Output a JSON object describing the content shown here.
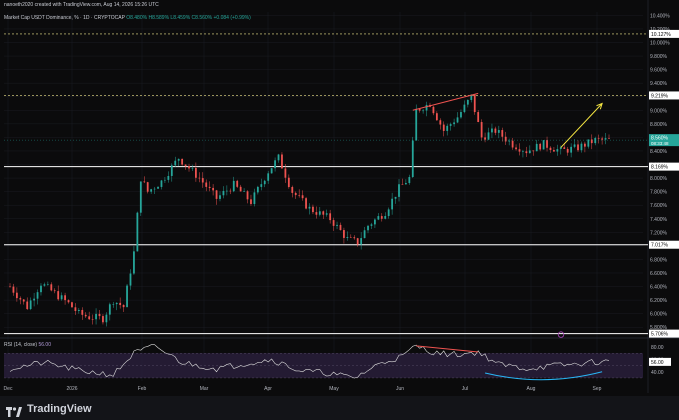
{
  "credit": "nanoeth2020 created with TradingView.com, Aug 14, 2026 15:26 UTC",
  "legend": {
    "symbol": "Market Cap USDT Dominance, %",
    "interval": "1D",
    "exchange": "CRYPTOCAP",
    "ohlc": "O8.480% H8.589% L8.459% C8.560% +0.084 (+0.99%)"
  },
  "brand": "TradingView",
  "chart_data": {
    "type": "candlestick",
    "title": "Market Cap USDT Dominance, %",
    "y_axis_ticks": [
      "10.400%",
      "10.200%",
      "10.000%",
      "9.800%",
      "9.600%",
      "9.400%",
      "9.200%",
      "9.000%",
      "8.800%",
      "8.600%",
      "8.400%",
      "8.200%",
      "8.000%",
      "7.800%",
      "7.600%",
      "7.400%",
      "7.200%",
      "7.000%",
      "6.800%",
      "6.600%",
      "6.400%",
      "6.200%",
      "6.000%",
      "5.800%"
    ],
    "ylim": [
      5.7,
      10.45
    ],
    "x_axis_ticks": [
      "Dec",
      "2026",
      "Feb",
      "Mar",
      "Apr",
      "May",
      "Jun",
      "Jul",
      "Aug",
      "Sep"
    ],
    "current_price": {
      "value": 8.56,
      "label": "8.560%",
      "countdown": "08:33:48"
    },
    "horizontal_levels": [
      {
        "value": 10.127,
        "label": "10.127%",
        "style": "dashed",
        "color": "#f0e68c"
      },
      {
        "value": 9.219,
        "label": "9.219%",
        "style": "dashed",
        "color": "#f0e68c"
      },
      {
        "value": 8.169,
        "label": "8.169%",
        "style": "solid",
        "color": "#ffffff"
      },
      {
        "value": 7.017,
        "label": "7.017%",
        "style": "solid",
        "color": "#ffffff"
      },
      {
        "value": 5.706,
        "label": "5.706%",
        "style": "solid",
        "color": "#ffffff"
      }
    ],
    "price_path_anchors": [
      [
        0,
        6.4
      ],
      [
        5,
        6.1
      ],
      [
        9,
        6.45
      ],
      [
        13,
        6.3
      ],
      [
        17,
        6.15
      ],
      [
        20,
        6.0
      ],
      [
        23,
        5.95
      ],
      [
        27,
        5.93
      ],
      [
        30,
        6.2
      ],
      [
        33,
        6.1
      ],
      [
        36,
        6.9
      ],
      [
        38,
        8.0
      ],
      [
        40,
        7.8
      ],
      [
        44,
        7.95
      ],
      [
        49,
        8.3
      ],
      [
        55,
        8.0
      ],
      [
        60,
        7.7
      ],
      [
        65,
        7.9
      ],
      [
        70,
        7.65
      ],
      [
        75,
        8.1
      ],
      [
        78,
        8.3
      ],
      [
        82,
        7.8
      ],
      [
        87,
        7.55
      ],
      [
        93,
        7.4
      ],
      [
        98,
        7.1
      ],
      [
        101,
        7.05
      ],
      [
        104,
        7.3
      ],
      [
        109,
        7.5
      ],
      [
        113,
        7.85
      ],
      [
        116,
        8.0
      ],
      [
        118,
        9.0
      ],
      [
        122,
        9.1
      ],
      [
        126,
        8.7
      ],
      [
        130,
        8.9
      ],
      [
        134,
        9.2
      ],
      [
        137,
        8.6
      ],
      [
        141,
        8.7
      ],
      [
        146,
        8.5
      ],
      [
        150,
        8.4
      ],
      [
        155,
        8.5
      ],
      [
        160,
        8.4
      ],
      [
        165,
        8.45
      ],
      [
        170,
        8.56
      ]
    ],
    "annotations": [
      {
        "type": "trendline",
        "color": "#ef5350",
        "from": [
          117,
          9.0
        ],
        "to": [
          136,
          9.25
        ]
      },
      {
        "type": "arrow",
        "color": "#f5e642",
        "from": [
          160,
          8.45
        ],
        "to": [
          172,
          9.1
        ]
      }
    ],
    "rsi": {
      "label": "RSI (14, close)",
      "value_text": "56.00",
      "current": 56.0,
      "ticks": [
        "80.00",
        "60.00",
        "40.00"
      ],
      "band": [
        30,
        70
      ],
      "ylim": [
        25,
        85
      ],
      "anchors": [
        [
          0,
          45
        ],
        [
          10,
          55
        ],
        [
          20,
          42
        ],
        [
          30,
          35
        ],
        [
          36,
          70
        ],
        [
          42,
          82
        ],
        [
          50,
          55
        ],
        [
          60,
          45
        ],
        [
          70,
          55
        ],
        [
          76,
          60
        ],
        [
          84,
          42
        ],
        [
          92,
          38
        ],
        [
          100,
          30
        ],
        [
          108,
          55
        ],
        [
          114,
          65
        ],
        [
          118,
          82
        ],
        [
          124,
          70
        ],
        [
          130,
          68
        ],
        [
          136,
          72
        ],
        [
          142,
          52
        ],
        [
          150,
          45
        ],
        [
          158,
          50
        ],
        [
          164,
          52
        ],
        [
          170,
          56
        ]
      ],
      "annotations": [
        {
          "type": "trendline",
          "color": "#ef5350",
          "from": [
            118,
            82
          ],
          "to": [
            136,
            72
          ]
        },
        {
          "type": "curve",
          "color": "#29b6f6",
          "from": [
            138,
            38
          ],
          "to": [
            172,
            40
          ]
        }
      ]
    }
  },
  "colors": {
    "up": "#26a69a",
    "down": "#ef5350",
    "background": "#0b0b0c",
    "grid": "#1a1c22",
    "axis_text": "#b2b5be",
    "rsi_line": "#e0e0e0",
    "rsi_band": "#2a1f3d"
  }
}
